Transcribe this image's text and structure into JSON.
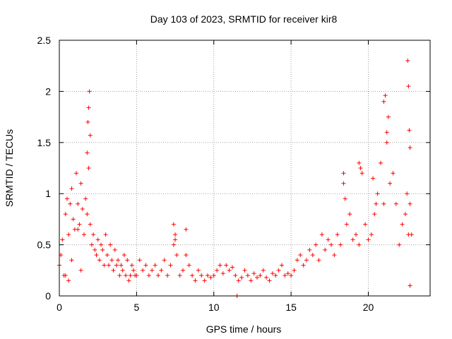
{
  "chart_data": {
    "type": "scatter",
    "title": "Day 103 of 2023, SRMTID for receiver kir8",
    "xlabel": "GPS time / hours",
    "ylabel": "SRMTID / TECUs",
    "xlim": [
      0,
      24
    ],
    "ylim": [
      0,
      2.5
    ],
    "xticks": [
      0,
      5,
      10,
      15,
      20
    ],
    "yticks": [
      0,
      0.5,
      1,
      1.5,
      2,
      2.5
    ],
    "xtick_labels": [
      "0",
      "5",
      "10",
      "15",
      "20"
    ],
    "ytick_labels": [
      "0",
      "0.5",
      "1",
      "1.5",
      "2",
      "2.5"
    ],
    "grid": true,
    "marker": "+",
    "color": "#ff0000",
    "series": [
      {
        "name": "SRMTID",
        "x": [
          0.0,
          0.1,
          0.2,
          0.3,
          0.4,
          0.5,
          0.6,
          0.7,
          0.8,
          0.9,
          1.0,
          1.1,
          1.2,
          1.3,
          1.4,
          1.5,
          1.6,
          1.7,
          1.8,
          1.9,
          2.0,
          2.1,
          2.2,
          2.3,
          2.4,
          2.5,
          2.6,
          2.7,
          2.8,
          2.9,
          3.0,
          3.1,
          3.2,
          3.3,
          3.4,
          3.5,
          3.6,
          3.7,
          3.8,
          3.9,
          4.0,
          4.1,
          4.2,
          4.3,
          4.4,
          4.5,
          4.6,
          4.7,
          4.8,
          4.9,
          5.0,
          5.2,
          5.4,
          5.6,
          5.8,
          6.0,
          6.2,
          6.4,
          6.6,
          6.8,
          7.0,
          7.2,
          7.4,
          7.5,
          7.6,
          7.8,
          8.0,
          8.2,
          8.4,
          8.6,
          8.8,
          9.0,
          9.2,
          9.4,
          9.6,
          9.8,
          10.0,
          10.2,
          10.4,
          10.6,
          10.8,
          11.0,
          11.2,
          11.4,
          11.6,
          11.8,
          12.0,
          12.2,
          12.4,
          12.6,
          12.8,
          13.0,
          13.2,
          13.4,
          13.6,
          13.8,
          14.0,
          14.2,
          14.4,
          14.6,
          14.8,
          15.0,
          15.2,
          15.4,
          15.6,
          15.8,
          16.0,
          16.2,
          16.4,
          16.6,
          16.8,
          17.0,
          17.2,
          17.4,
          17.6,
          17.8,
          18.0,
          18.2,
          18.4,
          18.6,
          18.8,
          19.0,
          19.2,
          19.4,
          19.6,
          19.8,
          20.0,
          20.2,
          20.4,
          20.6,
          20.8,
          21.0,
          21.2,
          21.4,
          21.6,
          21.8,
          22.0,
          22.2,
          22.4,
          22.5,
          22.6,
          22.7,
          1.8,
          1.85,
          1.9,
          1.95,
          2.0,
          22.55,
          22.6,
          22.65,
          22.7,
          21.0,
          21.1,
          21.2,
          21.3,
          0.4,
          0.6,
          0.8,
          1.2,
          1.4,
          7.4,
          7.5,
          8.2,
          11.5,
          18.4,
          18.5,
          19.4,
          19.5,
          20.3,
          20.5,
          22.7,
          22.8
        ],
        "y": [
          0.3,
          0.4,
          0.55,
          0.2,
          0.8,
          0.95,
          0.6,
          0.9,
          1.05,
          0.75,
          0.65,
          1.2,
          0.9,
          0.7,
          1.1,
          0.85,
          0.6,
          0.95,
          0.8,
          1.25,
          0.7,
          0.5,
          0.6,
          0.45,
          0.4,
          0.55,
          0.35,
          0.5,
          0.45,
          0.3,
          0.6,
          0.4,
          0.3,
          0.5,
          0.35,
          0.25,
          0.45,
          0.3,
          0.35,
          0.2,
          0.3,
          0.25,
          0.4,
          0.2,
          0.35,
          0.15,
          0.2,
          0.3,
          0.25,
          0.2,
          0.2,
          0.35,
          0.25,
          0.3,
          0.2,
          0.25,
          0.3,
          0.2,
          0.25,
          0.35,
          0.2,
          0.3,
          0.5,
          0.6,
          0.4,
          0.2,
          0.25,
          0.4,
          0.3,
          0.2,
          0.15,
          0.25,
          0.2,
          0.15,
          0.2,
          0.18,
          0.2,
          0.25,
          0.3,
          0.22,
          0.3,
          0.25,
          0.28,
          0.2,
          0.15,
          0.18,
          0.25,
          0.2,
          0.15,
          0.22,
          0.18,
          0.2,
          0.25,
          0.18,
          0.15,
          0.22,
          0.2,
          0.25,
          0.3,
          0.2,
          0.22,
          0.2,
          0.25,
          0.35,
          0.4,
          0.3,
          0.35,
          0.45,
          0.4,
          0.5,
          0.35,
          0.6,
          0.45,
          0.55,
          0.5,
          0.4,
          0.6,
          0.5,
          1.1,
          0.7,
          0.8,
          0.55,
          0.6,
          0.5,
          1.2,
          0.7,
          0.55,
          0.6,
          0.8,
          1.0,
          1.3,
          0.9,
          1.5,
          1.1,
          1.2,
          0.9,
          0.5,
          0.7,
          0.8,
          1.0,
          0.6,
          0.9,
          1.4,
          1.7,
          1.84,
          2.0,
          1.57,
          2.3,
          2.05,
          1.62,
          1.45,
          1.9,
          1.96,
          1.6,
          1.75,
          0.2,
          0.15,
          0.35,
          0.65,
          0.25,
          0.7,
          0.55,
          0.65,
          0.0,
          1.2,
          0.95,
          1.3,
          1.25,
          1.15,
          0.9,
          0.1,
          0.6
        ]
      }
    ]
  }
}
